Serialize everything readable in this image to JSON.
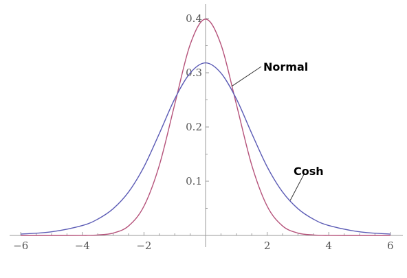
{
  "chart_data": {
    "type": "line",
    "title": "",
    "xlabel": "",
    "ylabel": "",
    "xlim": [
      -6,
      6
    ],
    "ylim": [
      0,
      0.42
    ],
    "grid": false,
    "legend": "none",
    "x_ticks": [
      {
        "value": -6,
        "label": "−6"
      },
      {
        "value": -4,
        "label": "−4"
      },
      {
        "value": -2,
        "label": "−2"
      },
      {
        "value": 2,
        "label": "2"
      },
      {
        "value": 4,
        "label": "4"
      },
      {
        "value": 6,
        "label": "6"
      }
    ],
    "y_ticks": [
      {
        "value": 0.1,
        "label": "0.1"
      },
      {
        "value": 0.2,
        "label": "0.2"
      },
      {
        "value": 0.3,
        "label": "0.3"
      },
      {
        "value": 0.4,
        "label": "0.4"
      }
    ],
    "series": [
      {
        "name": "Normal",
        "color": "#b5527a",
        "x": [
          -6,
          -5,
          -4,
          -3.5,
          -3,
          -2.5,
          -2,
          -1.5,
          -1,
          -0.5,
          0,
          0.5,
          1,
          1.5,
          2,
          2.5,
          3,
          3.5,
          4,
          5,
          6
        ],
        "y": [
          0.0,
          0.0,
          0.0001,
          0.0009,
          0.0044,
          0.0175,
          0.054,
          0.1295,
          0.242,
          0.3521,
          0.3989,
          0.3521,
          0.242,
          0.1295,
          0.054,
          0.0175,
          0.0044,
          0.0009,
          0.0001,
          0.0,
          0.0
        ]
      },
      {
        "name": "Cosh",
        "color": "#5b5bb5",
        "x": [
          -6,
          -5,
          -4,
          -3.5,
          -3,
          -2.5,
          -2,
          -1.5,
          -1,
          -0.5,
          0,
          0.5,
          1,
          1.5,
          2,
          2.5,
          3,
          3.5,
          4,
          5,
          6
        ],
        "y": [
          0.0025,
          0.0067,
          0.0183,
          0.0301,
          0.0493,
          0.0801,
          0.1266,
          0.1881,
          0.2519,
          0.2995,
          0.3183,
          0.2995,
          0.2519,
          0.1881,
          0.1266,
          0.0801,
          0.0493,
          0.0301,
          0.0183,
          0.0067,
          0.0025
        ]
      }
    ],
    "annotations": [
      {
        "text": "Normal",
        "series": "Normal",
        "at_x": 0.85
      },
      {
        "text": "Cosh",
        "series": "Cosh",
        "at_x": 2.75
      }
    ]
  }
}
